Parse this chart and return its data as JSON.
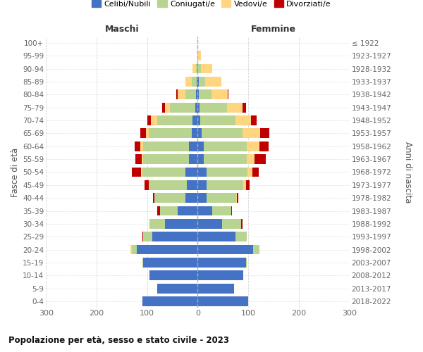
{
  "age_groups": [
    "0-4",
    "5-9",
    "10-14",
    "15-19",
    "20-24",
    "25-29",
    "30-34",
    "35-39",
    "40-44",
    "45-49",
    "50-54",
    "55-59",
    "60-64",
    "65-69",
    "70-74",
    "75-79",
    "80-84",
    "85-89",
    "90-94",
    "95-99",
    "100+"
  ],
  "birth_years": [
    "2018-2022",
    "2013-2017",
    "2008-2012",
    "2003-2007",
    "1998-2002",
    "1993-1997",
    "1988-1992",
    "1983-1987",
    "1978-1982",
    "1973-1977",
    "1968-1972",
    "1963-1967",
    "1958-1962",
    "1953-1957",
    "1948-1952",
    "1943-1947",
    "1938-1942",
    "1933-1937",
    "1928-1932",
    "1923-1927",
    "≤ 1922"
  ],
  "maschi_celibi": [
    110,
    80,
    95,
    108,
    120,
    90,
    65,
    40,
    25,
    22,
    25,
    18,
    18,
    12,
    10,
    5,
    3,
    2,
    1,
    0,
    0
  ],
  "maschi_coniugati": [
    0,
    0,
    0,
    2,
    10,
    18,
    30,
    35,
    60,
    75,
    85,
    90,
    90,
    85,
    70,
    50,
    22,
    10,
    3,
    0,
    0
  ],
  "maschi_vedovi": [
    0,
    0,
    0,
    0,
    3,
    0,
    0,
    0,
    0,
    0,
    2,
    3,
    5,
    5,
    12,
    10,
    15,
    12,
    6,
    1,
    0
  ],
  "maschi_divorziati": [
    0,
    0,
    0,
    0,
    0,
    2,
    0,
    5,
    3,
    8,
    18,
    12,
    12,
    12,
    8,
    5,
    2,
    0,
    0,
    0,
    0
  ],
  "femmine_nubili": [
    100,
    72,
    90,
    95,
    110,
    75,
    48,
    28,
    18,
    18,
    18,
    12,
    12,
    8,
    5,
    3,
    2,
    2,
    1,
    0,
    0
  ],
  "femmine_coniugate": [
    0,
    0,
    0,
    2,
    12,
    22,
    38,
    38,
    58,
    72,
    80,
    85,
    85,
    80,
    70,
    55,
    25,
    12,
    5,
    1,
    0
  ],
  "femmine_vedove": [
    0,
    0,
    0,
    0,
    0,
    0,
    0,
    0,
    2,
    5,
    10,
    15,
    25,
    35,
    30,
    30,
    32,
    32,
    22,
    5,
    0
  ],
  "femmine_divorziate": [
    0,
    0,
    0,
    0,
    0,
    0,
    2,
    2,
    2,
    8,
    12,
    22,
    18,
    18,
    12,
    8,
    2,
    0,
    0,
    0,
    0
  ],
  "color_celibi": "#4472C4",
  "color_coniugati": "#B8D490",
  "color_vedovi": "#FFD580",
  "color_divorziati": "#C00000",
  "title": "Popolazione per età, sesso e stato civile - 2023",
  "label_maschi": "Maschi",
  "label_femmine": "Femmine",
  "ylabel_left": "Fasce di età",
  "ylabel_right": "Anni di nascita",
  "legend_labels": [
    "Celibi/Nubili",
    "Coniugati/e",
    "Vedovi/e",
    "Divorziati/e"
  ],
  "xlim": 300,
  "bg_color": "#ffffff",
  "grid_color": "#cccccc"
}
